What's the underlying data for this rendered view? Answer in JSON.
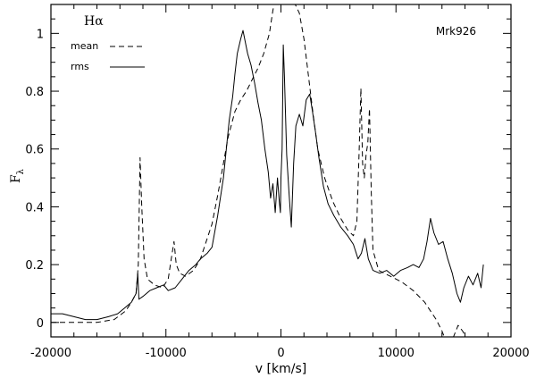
{
  "chart_data": {
    "type": "line",
    "xlabel": "v  [km/s]",
    "ylabel": "F",
    "ylabel_sub": "λ",
    "xlim": [
      -20000,
      20000
    ],
    "ylim": [
      -0.05,
      1.1
    ],
    "xticks": [
      -20000,
      -10000,
      0,
      10000,
      20000
    ],
    "yticks": [
      0,
      0.2,
      0.4,
      0.6,
      0.8,
      1
    ],
    "grid": false,
    "legend_placement": "top-left",
    "annotations": {
      "line_label": "Hα",
      "object_label": "Mrk926"
    },
    "series": [
      {
        "name": "mean",
        "style": "dashed",
        "points": [
          [
            -20000,
            0.0
          ],
          [
            -18000,
            0.0
          ],
          [
            -16000,
            0.0
          ],
          [
            -14500,
            0.01
          ],
          [
            -13500,
            0.04
          ],
          [
            -13000,
            0.07
          ],
          [
            -12600,
            0.1
          ],
          [
            -12400,
            0.2
          ],
          [
            -12250,
            0.57
          ],
          [
            -12100,
            0.4
          ],
          [
            -11900,
            0.22
          ],
          [
            -11600,
            0.15
          ],
          [
            -11000,
            0.13
          ],
          [
            -10300,
            0.12
          ],
          [
            -9800,
            0.15
          ],
          [
            -9500,
            0.23
          ],
          [
            -9300,
            0.28
          ],
          [
            -9100,
            0.2
          ],
          [
            -8800,
            0.17
          ],
          [
            -8300,
            0.16
          ],
          [
            -7600,
            0.18
          ],
          [
            -7000,
            0.22
          ],
          [
            -6500,
            0.28
          ],
          [
            -6000,
            0.34
          ],
          [
            -5500,
            0.44
          ],
          [
            -5000,
            0.55
          ],
          [
            -4600,
            0.64
          ],
          [
            -4000,
            0.73
          ],
          [
            -3500,
            0.77
          ],
          [
            -3000,
            0.8
          ],
          [
            -2500,
            0.84
          ],
          [
            -2000,
            0.88
          ],
          [
            -1500,
            0.93
          ],
          [
            -1000,
            1.0
          ],
          [
            -700,
            1.08
          ],
          [
            -500,
            1.12
          ],
          [
            1000,
            1.12
          ],
          [
            1600,
            1.07
          ],
          [
            2000,
            0.98
          ],
          [
            2400,
            0.85
          ],
          [
            2800,
            0.72
          ],
          [
            3200,
            0.6
          ],
          [
            3800,
            0.5
          ],
          [
            4500,
            0.42
          ],
          [
            5200,
            0.36
          ],
          [
            5800,
            0.32
          ],
          [
            6300,
            0.3
          ],
          [
            6600,
            0.35
          ],
          [
            6800,
            0.6
          ],
          [
            6950,
            0.81
          ],
          [
            7100,
            0.55
          ],
          [
            7250,
            0.5
          ],
          [
            7400,
            0.58
          ],
          [
            7550,
            0.62
          ],
          [
            7700,
            0.74
          ],
          [
            7850,
            0.45
          ],
          [
            8000,
            0.25
          ],
          [
            8500,
            0.18
          ],
          [
            9500,
            0.16
          ],
          [
            10500,
            0.14
          ],
          [
            11500,
            0.11
          ],
          [
            12500,
            0.07
          ],
          [
            13500,
            0.01
          ],
          [
            14000,
            -0.03
          ],
          [
            14300,
            -0.06
          ],
          [
            15000,
            -0.05
          ],
          [
            15400,
            -0.01
          ],
          [
            15800,
            -0.03
          ],
          [
            16200,
            -0.06
          ],
          [
            17000,
            -0.06
          ],
          [
            17600,
            -0.05
          ]
        ]
      },
      {
        "name": "rms",
        "style": "solid",
        "points": [
          [
            -20000,
            0.03
          ],
          [
            -19000,
            0.03
          ],
          [
            -18000,
            0.02
          ],
          [
            -17000,
            0.01
          ],
          [
            -16000,
            0.01
          ],
          [
            -15000,
            0.02
          ],
          [
            -14200,
            0.03
          ],
          [
            -13600,
            0.05
          ],
          [
            -13000,
            0.07
          ],
          [
            -12600,
            0.1
          ],
          [
            -12450,
            0.17
          ],
          [
            -12350,
            0.08
          ],
          [
            -12000,
            0.09
          ],
          [
            -11400,
            0.11
          ],
          [
            -10800,
            0.12
          ],
          [
            -10200,
            0.13
          ],
          [
            -9800,
            0.11
          ],
          [
            -9200,
            0.12
          ],
          [
            -8600,
            0.15
          ],
          [
            -8000,
            0.18
          ],
          [
            -7400,
            0.2
          ],
          [
            -7000,
            0.22
          ],
          [
            -6400,
            0.24
          ],
          [
            -6000,
            0.26
          ],
          [
            -5500,
            0.37
          ],
          [
            -5000,
            0.5
          ],
          [
            -4800,
            0.58
          ],
          [
            -4500,
            0.7
          ],
          [
            -4200,
            0.78
          ],
          [
            -4000,
            0.86
          ],
          [
            -3800,
            0.93
          ],
          [
            -3500,
            0.98
          ],
          [
            -3300,
            1.01
          ],
          [
            -3100,
            0.97
          ],
          [
            -2900,
            0.93
          ],
          [
            -2600,
            0.89
          ],
          [
            -2300,
            0.83
          ],
          [
            -2000,
            0.76
          ],
          [
            -1700,
            0.7
          ],
          [
            -1400,
            0.6
          ],
          [
            -1100,
            0.52
          ],
          [
            -900,
            0.43
          ],
          [
            -700,
            0.48
          ],
          [
            -500,
            0.38
          ],
          [
            -300,
            0.5
          ],
          [
            -150,
            0.42
          ],
          [
            -50,
            0.38
          ],
          [
            0,
            0.5
          ],
          [
            100,
            0.6
          ],
          [
            200,
            0.96
          ],
          [
            300,
            0.85
          ],
          [
            500,
            0.58
          ],
          [
            700,
            0.45
          ],
          [
            900,
            0.33
          ],
          [
            1100,
            0.55
          ],
          [
            1300,
            0.68
          ],
          [
            1600,
            0.72
          ],
          [
            1900,
            0.68
          ],
          [
            2200,
            0.77
          ],
          [
            2500,
            0.79
          ],
          [
            2700,
            0.74
          ],
          [
            3000,
            0.66
          ],
          [
            3300,
            0.57
          ],
          [
            3700,
            0.47
          ],
          [
            4100,
            0.41
          ],
          [
            4600,
            0.37
          ],
          [
            5200,
            0.33
          ],
          [
            5800,
            0.3
          ],
          [
            6300,
            0.27
          ],
          [
            6700,
            0.22
          ],
          [
            7000,
            0.24
          ],
          [
            7300,
            0.29
          ],
          [
            7600,
            0.22
          ],
          [
            8000,
            0.18
          ],
          [
            8600,
            0.17
          ],
          [
            9200,
            0.18
          ],
          [
            9800,
            0.16
          ],
          [
            10400,
            0.18
          ],
          [
            11000,
            0.19
          ],
          [
            11500,
            0.2
          ],
          [
            12000,
            0.19
          ],
          [
            12400,
            0.22
          ],
          [
            12700,
            0.28
          ],
          [
            13000,
            0.36
          ],
          [
            13300,
            0.31
          ],
          [
            13700,
            0.27
          ],
          [
            14100,
            0.28
          ],
          [
            14500,
            0.22
          ],
          [
            14900,
            0.17
          ],
          [
            15300,
            0.1
          ],
          [
            15600,
            0.07
          ],
          [
            15900,
            0.12
          ],
          [
            16300,
            0.16
          ],
          [
            16700,
            0.13
          ],
          [
            17100,
            0.17
          ],
          [
            17400,
            0.12
          ],
          [
            17600,
            0.2
          ]
        ]
      }
    ]
  }
}
